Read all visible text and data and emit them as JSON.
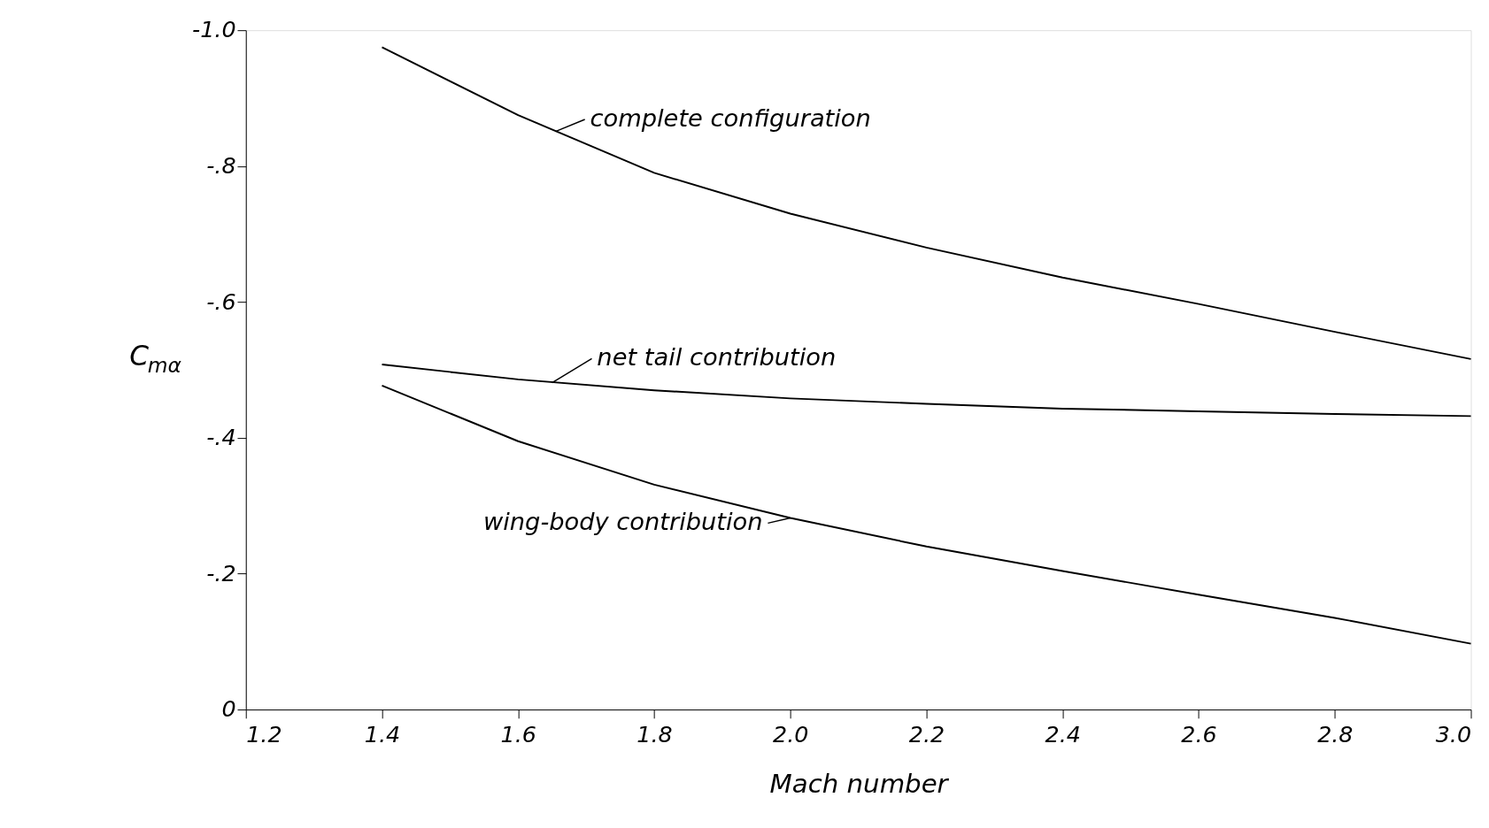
{
  "chart_data": {
    "type": "line",
    "xlabel": "Mach number",
    "ylabel": "C$_{mα}$",
    "x": [
      1.4,
      1.6,
      1.8,
      2.0,
      2.2,
      2.4,
      2.6,
      2.8,
      3.0
    ],
    "series": [
      {
        "color": "#000000",
        "values": [
          -0.975,
          -0.875,
          -0.79,
          -0.73,
          -0.68,
          -0.636,
          -0.597,
          -0.556,
          -0.516
        ]
      },
      {
        "color": "#000000",
        "values": [
          -0.508,
          -0.486,
          -0.47,
          -0.458,
          -0.45,
          -0.443,
          -0.439,
          -0.435,
          -0.432
        ]
      },
      {
        "color": "#000000",
        "values": [
          -0.477,
          -0.395,
          -0.331,
          -0.282,
          -0.24,
          -0.204,
          -0.169,
          -0.135,
          -0.097
        ]
      }
    ],
    "annotations": [
      {
        "text": "complete configuration",
        "x": 1.655,
        "y": -0.851
      },
      {
        "text": "net tail contribution",
        "x": 1.65,
        "y": -0.481
      },
      {
        "text": "wing-body contribution",
        "x": 2.0,
        "y": -0.282
      }
    ],
    "xlim": [
      1.2,
      3.0
    ],
    "xticks": [
      {
        "value": 1.2,
        "label": "1.2"
      },
      {
        "value": 1.4,
        "label": "1.4"
      },
      {
        "value": 1.6,
        "label": "1.6"
      },
      {
        "value": 1.8,
        "label": "1.8"
      },
      {
        "value": 2.0,
        "label": "2.0"
      },
      {
        "value": 2.2,
        "label": "2.2"
      },
      {
        "value": 2.4,
        "label": "2.4"
      },
      {
        "value": 2.6,
        "label": "2.6"
      },
      {
        "value": 2.8,
        "label": "2.8"
      },
      {
        "value": 3.0,
        "label": "3.0"
      }
    ],
    "ylim": [
      0,
      -1.0
    ],
    "yticks": [
      {
        "value": 0,
        "label": "0"
      },
      {
        "value": -0.2,
        "label": "-.2"
      },
      {
        "value": -0.4,
        "label": "-.4"
      },
      {
        "value": -0.6,
        "label": "-.6"
      },
      {
        "value": -0.8,
        "label": "-.8"
      },
      {
        "value": -1.0,
        "label": "-1.0"
      }
    ],
    "grid": false,
    "legend": false,
    "marker": "none",
    "line_style": "solid"
  }
}
